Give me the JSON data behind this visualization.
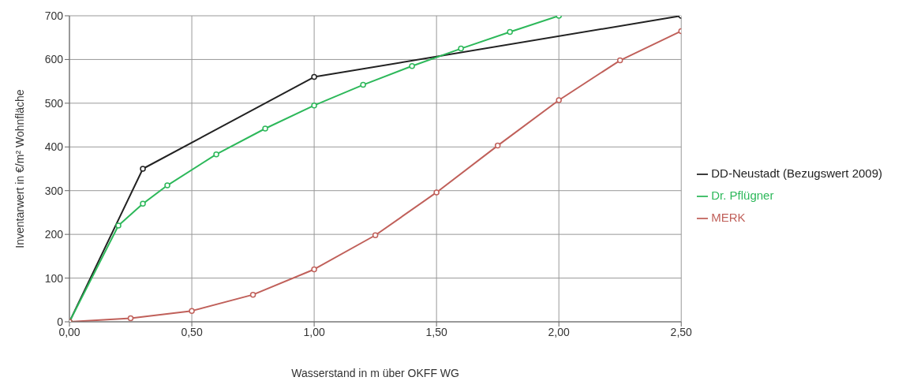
{
  "chart_data": {
    "type": "line",
    "xlabel": "Wasserstand in m über OKFF WG",
    "ylabel": "Inventarwert in €/m² Wohnfläche",
    "xlim": [
      0,
      2.5
    ],
    "xticks": [
      {
        "value": 0,
        "label": "0,00"
      },
      {
        "value": 0.5,
        "label": "0,50"
      },
      {
        "value": 1,
        "label": "1,00"
      },
      {
        "value": 1.5,
        "label": "1,50"
      },
      {
        "value": 2,
        "label": "2,00"
      },
      {
        "value": 2.5,
        "label": "2,50"
      }
    ],
    "ylim": [
      0,
      700
    ],
    "yticks": [
      0,
      100,
      200,
      300,
      400,
      500,
      600,
      700
    ],
    "grid": true,
    "legend": "right",
    "marker": "circle",
    "line_style": "solid",
    "series": [
      {
        "name": "DD-Neustadt (Bezugswert 2009)",
        "color": "#222222",
        "x": [
          0,
          0.3,
          1,
          2.5
        ],
        "values": [
          0,
          350,
          560,
          700
        ]
      },
      {
        "name": "Dr. Pflügner",
        "color": "#2db85a",
        "x": [
          0,
          0.2,
          0.3,
          0.4,
          0.6,
          0.8,
          1,
          1.2,
          1.4,
          1.6,
          1.8,
          2
        ],
        "values": [
          0,
          220,
          270,
          312,
          383,
          442,
          495,
          542,
          585,
          625,
          663,
          700
        ]
      },
      {
        "name": "MERK",
        "color": "#c0605a",
        "x": [
          0,
          0.25,
          0.5,
          0.75,
          1,
          1.25,
          1.5,
          1.75,
          2,
          2.25,
          2.5
        ],
        "values": [
          0,
          8,
          25,
          62,
          120,
          198,
          296,
          403,
          507,
          598,
          665
        ]
      }
    ]
  }
}
